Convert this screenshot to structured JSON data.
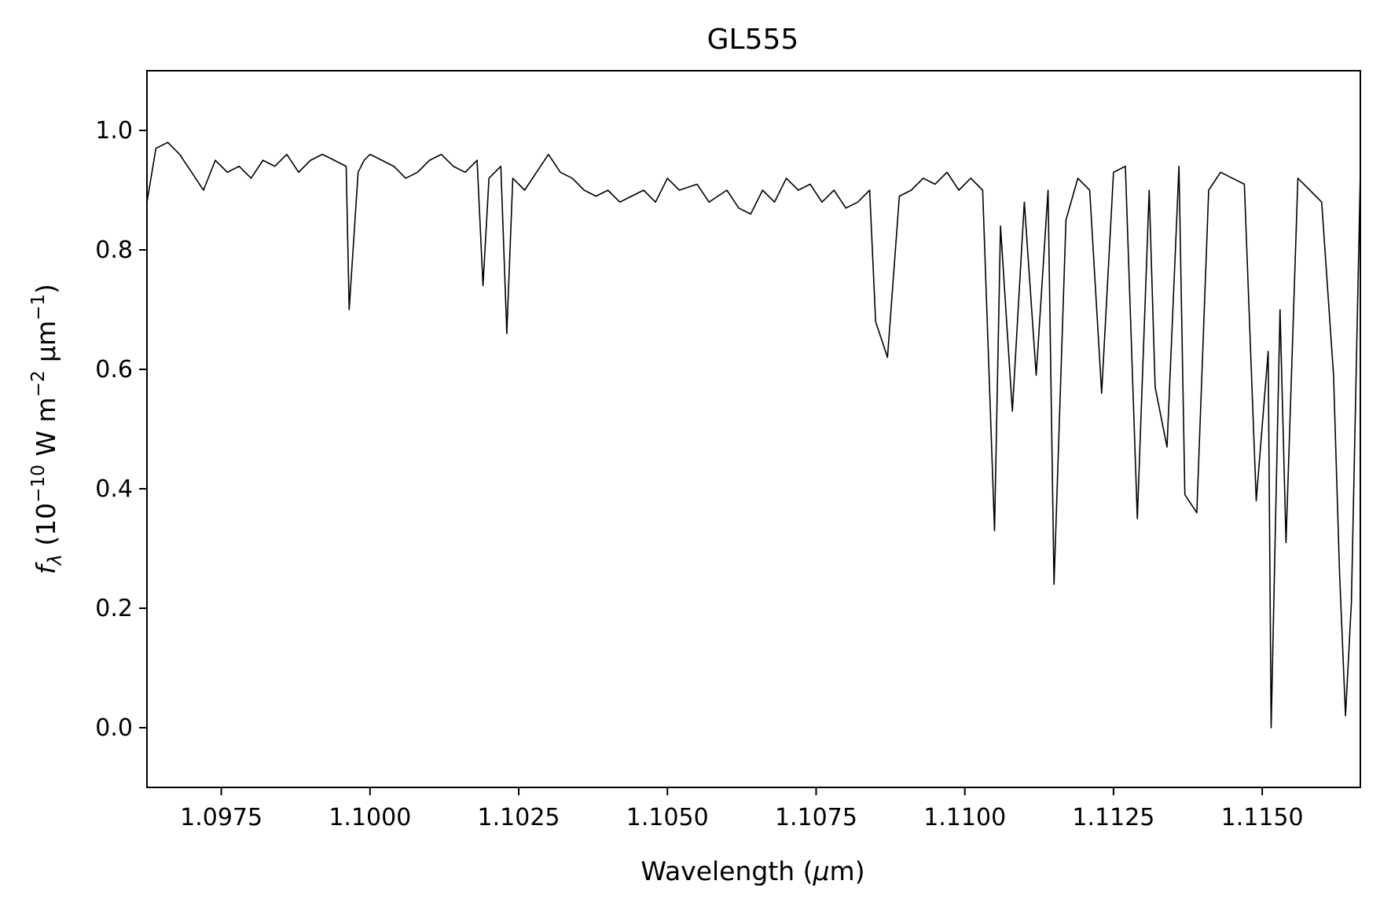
{
  "chart_data": {
    "type": "line",
    "title": "GL555",
    "xlabel": {
      "main": "Wavelength (",
      "sym": "μ",
      "unit": "m)"
    },
    "ylabel": {
      "f": "f",
      "sub": "λ",
      "open": " (10",
      "exp1": "−10",
      "mid": " W m",
      "exp2": "−2",
      "mid2": " μm",
      "exp3": "−1",
      "close": ")"
    },
    "xlim": [
      1.09625,
      1.11665
    ],
    "ylim": [
      -0.1,
      1.1
    ],
    "x_ticks": [
      {
        "value": 1.0975,
        "label": "1.0975"
      },
      {
        "value": 1.1,
        "label": "1.1000"
      },
      {
        "value": 1.1025,
        "label": "1.1025"
      },
      {
        "value": 1.105,
        "label": "1.1050"
      },
      {
        "value": 1.1075,
        "label": "1.1075"
      },
      {
        "value": 1.11,
        "label": "1.1100"
      },
      {
        "value": 1.1125,
        "label": "1.1125"
      },
      {
        "value": 1.115,
        "label": "1.1150"
      }
    ],
    "y_ticks": [
      {
        "value": 0.0,
        "label": "0.0"
      },
      {
        "value": 0.2,
        "label": "0.2"
      },
      {
        "value": 0.4,
        "label": "0.4"
      },
      {
        "value": 0.6,
        "label": "0.6"
      },
      {
        "value": 0.8,
        "label": "0.8"
      },
      {
        "value": 1.0,
        "label": "1.0"
      }
    ],
    "grid": false,
    "line_color": "#000000",
    "series": [
      {
        "x": [
          1.09625,
          1.0964,
          1.0966,
          1.0968,
          1.097,
          1.0972,
          1.0974,
          1.0976,
          1.0978,
          1.098,
          1.0982,
          1.0984,
          1.0986,
          1.0988,
          1.099,
          1.0992,
          1.0994,
          1.0996,
          1.09965,
          1.0998,
          1.0999,
          1.1,
          1.1002,
          1.1004,
          1.1006,
          1.1008,
          1.101,
          1.1012,
          1.1014,
          1.1016,
          1.1018,
          1.1019,
          1.102,
          1.1022,
          1.1023,
          1.1024,
          1.1026,
          1.1028,
          1.103,
          1.1032,
          1.1034,
          1.1036,
          1.1038,
          1.104,
          1.1042,
          1.1044,
          1.1046,
          1.1048,
          1.105,
          1.1052,
          1.1055,
          1.1057,
          1.106,
          1.1062,
          1.1064,
          1.1066,
          1.1068,
          1.107,
          1.1072,
          1.1074,
          1.1076,
          1.1078,
          1.108,
          1.1082,
          1.1084,
          1.1085,
          1.1087,
          1.1089,
          1.1091,
          1.1093,
          1.1095,
          1.1097,
          1.1099,
          1.1101,
          1.1103,
          1.1105,
          1.1106,
          1.1108,
          1.111,
          1.1112,
          1.1114,
          1.1115,
          1.1117,
          1.1119,
          1.1121,
          1.1123,
          1.1125,
          1.1127,
          1.1129,
          1.1131,
          1.1132,
          1.1134,
          1.1136,
          1.1137,
          1.1139,
          1.1141,
          1.1143,
          1.1145,
          1.1147,
          1.1149,
          1.1151,
          1.11515,
          1.1153,
          1.1154,
          1.1156,
          1.1158,
          1.116,
          1.1162,
          1.1163,
          1.1164,
          1.1165,
          1.11665
        ],
        "y": [
          0.88,
          0.97,
          0.98,
          0.96,
          0.93,
          0.9,
          0.95,
          0.93,
          0.94,
          0.92,
          0.95,
          0.94,
          0.96,
          0.93,
          0.95,
          0.96,
          0.95,
          0.94,
          0.7,
          0.93,
          0.95,
          0.96,
          0.95,
          0.94,
          0.92,
          0.93,
          0.95,
          0.96,
          0.94,
          0.93,
          0.95,
          0.74,
          0.92,
          0.94,
          0.66,
          0.92,
          0.9,
          0.93,
          0.96,
          0.93,
          0.92,
          0.9,
          0.89,
          0.9,
          0.88,
          0.89,
          0.9,
          0.88,
          0.92,
          0.9,
          0.91,
          0.88,
          0.9,
          0.87,
          0.86,
          0.9,
          0.88,
          0.92,
          0.9,
          0.91,
          0.88,
          0.9,
          0.87,
          0.88,
          0.9,
          0.68,
          0.62,
          0.89,
          0.9,
          0.92,
          0.91,
          0.93,
          0.9,
          0.92,
          0.9,
          0.33,
          0.84,
          0.53,
          0.88,
          0.59,
          0.9,
          0.24,
          0.85,
          0.92,
          0.9,
          0.56,
          0.93,
          0.94,
          0.35,
          0.9,
          0.57,
          0.47,
          0.94,
          0.39,
          0.36,
          0.9,
          0.93,
          0.92,
          0.91,
          0.38,
          0.63,
          0.0,
          0.7,
          0.31,
          0.92,
          0.9,
          0.88,
          0.59,
          0.26,
          0.02,
          0.21,
          0.93
        ]
      }
    ]
  }
}
